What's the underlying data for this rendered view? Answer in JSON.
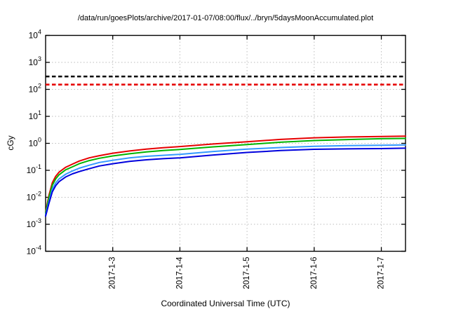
{
  "chart_data": {
    "type": "line",
    "title": "/data/run/goesPlots/archive/2017-01-07/08:00/flux/../bryn/5daysMoonAccumulated.plot",
    "xlabel": "Coordinated Universal Time (UTC)",
    "ylabel": "cGy",
    "y_scale": "log",
    "ylim": [
      0.0001,
      10000
    ],
    "y_tick_exponents": [
      4,
      3,
      2,
      1,
      0,
      -1,
      -2,
      -3,
      -4
    ],
    "x_domain_days": [
      0,
      5.36
    ],
    "x_ticks": [
      {
        "label": "2017-1-3",
        "day": 1
      },
      {
        "label": "2017-1-4",
        "day": 2
      },
      {
        "label": "2017-1-5",
        "day": 3
      },
      {
        "label": "2017-1-6",
        "day": 4
      },
      {
        "label": "2017-1-7",
        "day": 5
      }
    ],
    "grid": true,
    "legend": "none",
    "thresholds": [
      {
        "name": "black-dashed-limit",
        "value": 300,
        "color": "#000000",
        "style": "dashed"
      },
      {
        "name": "red-dashed-limit",
        "value": 150,
        "color": "#e60000",
        "style": "dashed"
      }
    ],
    "series": [
      {
        "name": "red-accumulated-dose",
        "color": "#e60000",
        "points": [
          [
            0,
            0.0028
          ],
          [
            0.05,
            0.012
          ],
          [
            0.1,
            0.035
          ],
          [
            0.15,
            0.06
          ],
          [
            0.2,
            0.085
          ],
          [
            0.3,
            0.13
          ],
          [
            0.4,
            0.17
          ],
          [
            0.5,
            0.22
          ],
          [
            0.65,
            0.29
          ],
          [
            0.8,
            0.35
          ],
          [
            1,
            0.43
          ],
          [
            1.25,
            0.52
          ],
          [
            1.5,
            0.61
          ],
          [
            1.75,
            0.69
          ],
          [
            2,
            0.76
          ],
          [
            2.5,
            0.95
          ],
          [
            3,
            1.15
          ],
          [
            3.5,
            1.4
          ],
          [
            4,
            1.6
          ],
          [
            4.5,
            1.72
          ],
          [
            5,
            1.8
          ],
          [
            5.36,
            1.85
          ]
        ]
      },
      {
        "name": "green-accumulated-dose",
        "color": "#00b400",
        "points": [
          [
            0,
            0.0026
          ],
          [
            0.05,
            0.01
          ],
          [
            0.1,
            0.028
          ],
          [
            0.15,
            0.048
          ],
          [
            0.2,
            0.068
          ],
          [
            0.3,
            0.105
          ],
          [
            0.4,
            0.135
          ],
          [
            0.5,
            0.175
          ],
          [
            0.65,
            0.23
          ],
          [
            0.8,
            0.28
          ],
          [
            1,
            0.34
          ],
          [
            1.25,
            0.41
          ],
          [
            1.5,
            0.48
          ],
          [
            1.75,
            0.54
          ],
          [
            2,
            0.59
          ],
          [
            2.5,
            0.74
          ],
          [
            3,
            0.9
          ],
          [
            3.5,
            1.1
          ],
          [
            4,
            1.27
          ],
          [
            4.5,
            1.38
          ],
          [
            5,
            1.48
          ],
          [
            5.36,
            1.52
          ]
        ]
      },
      {
        "name": "skyblue-accumulated-dose",
        "color": "#3399ff",
        "points": [
          [
            0,
            0.0022
          ],
          [
            0.05,
            0.007
          ],
          [
            0.1,
            0.02
          ],
          [
            0.15,
            0.034
          ],
          [
            0.2,
            0.048
          ],
          [
            0.3,
            0.072
          ],
          [
            0.4,
            0.095
          ],
          [
            0.5,
            0.12
          ],
          [
            0.65,
            0.155
          ],
          [
            0.8,
            0.195
          ],
          [
            1,
            0.235
          ],
          [
            1.25,
            0.29
          ],
          [
            1.5,
            0.33
          ],
          [
            1.75,
            0.36
          ],
          [
            2,
            0.39
          ],
          [
            2.5,
            0.5
          ],
          [
            3,
            0.61
          ],
          [
            3.5,
            0.7
          ],
          [
            4,
            0.78
          ],
          [
            4.5,
            0.82
          ],
          [
            5,
            0.85
          ],
          [
            5.36,
            0.87
          ]
        ]
      },
      {
        "name": "blue-accumulated-dose",
        "color": "#0000dd",
        "points": [
          [
            0,
            0.002
          ],
          [
            0.05,
            0.006
          ],
          [
            0.1,
            0.016
          ],
          [
            0.15,
            0.027
          ],
          [
            0.2,
            0.038
          ],
          [
            0.3,
            0.057
          ],
          [
            0.4,
            0.074
          ],
          [
            0.5,
            0.09
          ],
          [
            0.65,
            0.115
          ],
          [
            0.8,
            0.145
          ],
          [
            1,
            0.175
          ],
          [
            1.25,
            0.215
          ],
          [
            1.5,
            0.245
          ],
          [
            1.75,
            0.27
          ],
          [
            2,
            0.29
          ],
          [
            2.5,
            0.37
          ],
          [
            3,
            0.46
          ],
          [
            3.5,
            0.54
          ],
          [
            4,
            0.6
          ],
          [
            4.5,
            0.625
          ],
          [
            5,
            0.64
          ],
          [
            5.36,
            0.66
          ]
        ]
      }
    ],
    "colors": {
      "grid": "#bdbdbd",
      "axis": "#000000",
      "background": "#ffffff"
    }
  }
}
